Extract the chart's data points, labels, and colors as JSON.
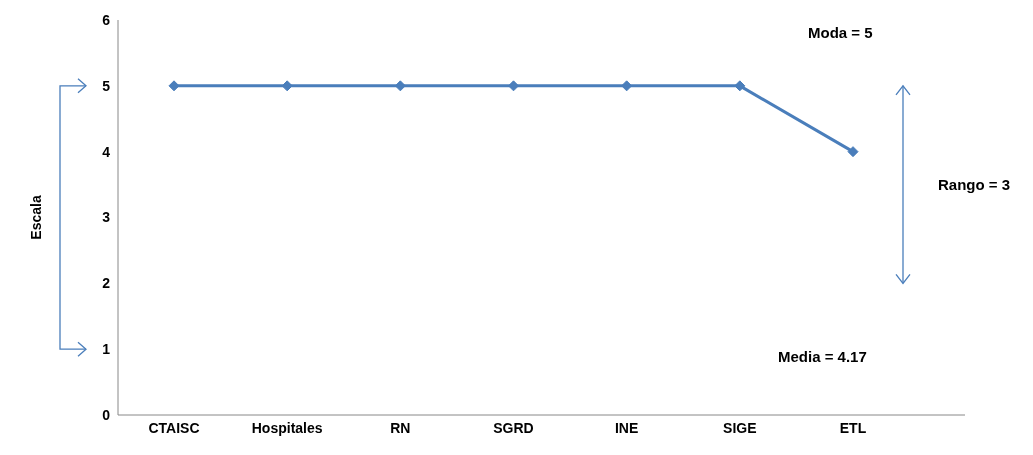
{
  "chart_data": {
    "type": "line",
    "ylabel": "Escala",
    "categories": [
      "CTAISC",
      "Hospitales",
      "RN",
      "SGRD",
      "INE",
      "SIGE",
      "ETL"
    ],
    "series": [
      {
        "color": "#4a7ebb",
        "values": [
          5,
          5,
          5,
          5,
          5,
          5,
          4
        ]
      }
    ],
    "ylim": [
      0,
      6
    ],
    "yticks": [
      0,
      1,
      2,
      3,
      4,
      5,
      6
    ],
    "grid": false,
    "legend": false,
    "marker": "diamond",
    "line_style": "solid",
    "annotations": [
      "Moda = 5",
      "Rango = 3",
      "Media = 4.17"
    ]
  }
}
